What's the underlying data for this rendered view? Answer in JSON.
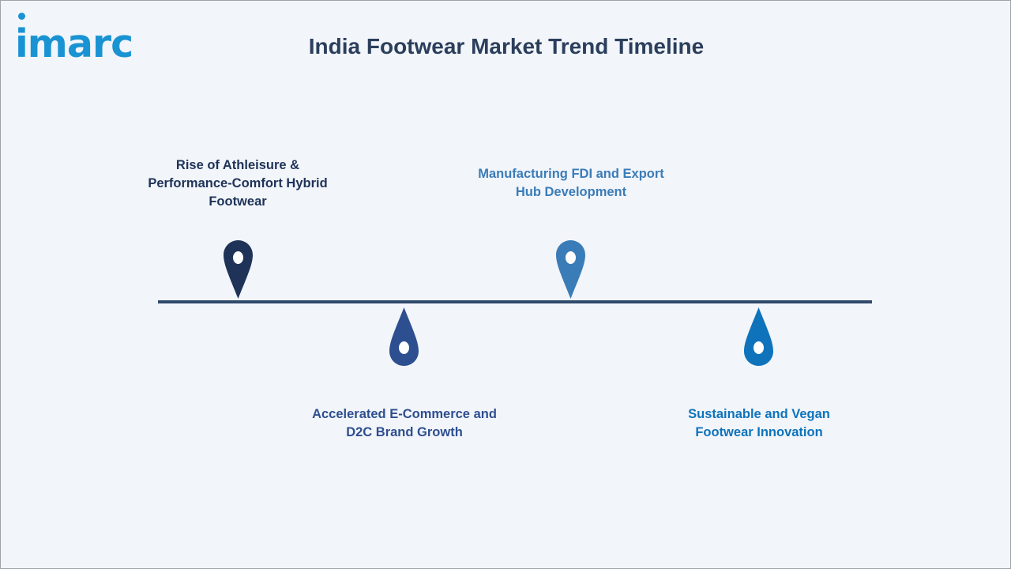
{
  "logo": {
    "text": "imarc",
    "color": "#1a93d3"
  },
  "title": "India Footwear Market Trend Timeline",
  "timeline": {
    "line_color": "#2f4a6b",
    "events": [
      {
        "label": "Rise of Athleisure &\nPerformance-Comfort Hybrid\nFootwear",
        "color": "#1f3358",
        "pin_direction": "down",
        "position": "above"
      },
      {
        "label": "Accelerated E-Commerce and\nD2C Brand Growth",
        "color": "#2e4f8f",
        "pin_direction": "up",
        "position": "below"
      },
      {
        "label": "Manufacturing FDI and Export\nHub Development",
        "color": "#3a7cb8",
        "pin_direction": "down",
        "position": "above"
      },
      {
        "label": "Sustainable and Vegan\nFootwear Innovation",
        "color": "#0e73bb",
        "pin_direction": "up",
        "position": "below"
      }
    ]
  }
}
